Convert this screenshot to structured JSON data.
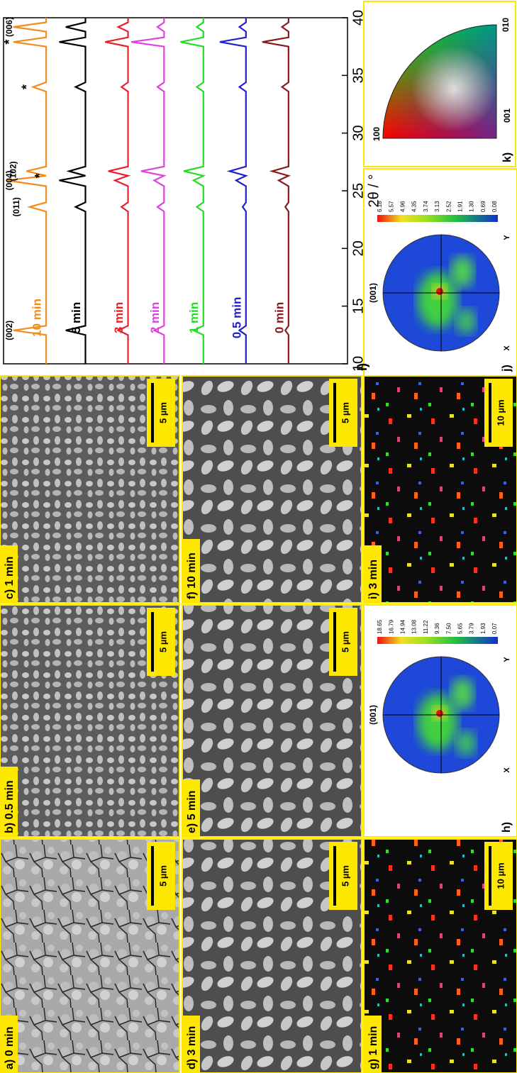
{
  "sem_panels": [
    {
      "label": "a) 0 min",
      "scale_bar": "5 µm"
    },
    {
      "label": "b) 0.5 min",
      "scale_bar": "5 µm"
    },
    {
      "label": "c) 1 min",
      "scale_bar": "5 µm"
    },
    {
      "label": "d) 3 min",
      "scale_bar": "5 µm"
    },
    {
      "label": "e) 5 min",
      "scale_bar": "5 µm"
    },
    {
      "label": "f) 10 min",
      "scale_bar": "5 µm"
    }
  ],
  "ebsd_maps": [
    {
      "label": "g) 1 min",
      "scale_bar": "10 µm"
    },
    {
      "label": "i) 3 min",
      "scale_bar": "10 µm"
    }
  ],
  "pole_figures": [
    {
      "label": "h)",
      "plane": "(001)",
      "axis_x": "X",
      "axis_y": "Y",
      "colorbar": [
        "18.65",
        "16.79",
        "14.94",
        "13.08",
        "11.22",
        "9.36",
        "7.50",
        "5.65",
        "3.79",
        "1.93",
        "0.07"
      ]
    },
    {
      "label": "j)",
      "plane": "(001)",
      "axis_x": "X",
      "axis_y": "Y",
      "colorbar": [
        "6.18",
        "5.57",
        "4.96",
        "4.35",
        "3.74",
        "3.13",
        "2.52",
        "1.91",
        "1.30",
        "0.69",
        "0.08"
      ]
    }
  ],
  "ipf_key": {
    "label": "k)",
    "corner_001": "001",
    "corner_010": "010",
    "corner_100": "100"
  },
  "chart_data": {
    "type": "line",
    "label": "l)",
    "xlabel": "2θ / °",
    "x": [
      10,
      12.5,
      12.9,
      13.3,
      23.2,
      23.6,
      24.0,
      25.4,
      25.9,
      26.3,
      26.7,
      27.1,
      33.6,
      34.0,
      34.4,
      37.5,
      37.9,
      38.3,
      38.8,
      39.2,
      39.6,
      40
    ],
    "xlim": [
      10,
      40
    ],
    "xticks": [
      10,
      15,
      20,
      25,
      30,
      35,
      40
    ],
    "ylim": [
      0,
      105
    ],
    "grid": false,
    "series": [
      {
        "name": "10 min",
        "color": "#f28c1e",
        "values": [
          92,
          92,
          102,
          92,
          92,
          97,
          92,
          92,
          104,
          92,
          98,
          92,
          92,
          96,
          92,
          92,
          102,
          92,
          92,
          102,
          92,
          92
        ]
      },
      {
        "name": "5 min",
        "color": "#000000",
        "values": [
          80,
          80,
          86,
          80,
          80,
          83,
          80,
          80,
          88,
          80,
          85,
          80,
          80,
          83,
          80,
          80,
          88,
          80,
          80,
          86,
          80,
          80
        ]
      },
      {
        "name": "3 min",
        "color": "#e8202a",
        "values": [
          67,
          67,
          70,
          67,
          67,
          69,
          67,
          67,
          71,
          67,
          73,
          67,
          67,
          69,
          67,
          67,
          74,
          67,
          67,
          70,
          67,
          67
        ]
      },
      {
        "name": "2 min",
        "color": "#e040e0",
        "values": [
          56,
          56,
          59,
          56,
          56,
          58,
          56,
          56,
          59,
          56,
          63,
          56,
          56,
          58,
          56,
          56,
          66,
          56,
          56,
          58,
          56,
          56
        ]
      },
      {
        "name": "1 min",
        "color": "#22dd22",
        "values": [
          44,
          44,
          47,
          44,
          44,
          46,
          44,
          44,
          47,
          44,
          50,
          44,
          44,
          46,
          44,
          44,
          51,
          44,
          44,
          46,
          44,
          44
        ]
      },
      {
        "name": "0.5 min",
        "color": "#2020d0",
        "values": [
          31,
          31,
          33,
          31,
          31,
          32,
          31,
          31,
          34,
          31,
          36,
          31,
          31,
          33,
          31,
          31,
          39,
          31,
          31,
          33,
          31,
          31
        ]
      },
      {
        "name": "0 min",
        "color": "#8b1a1a",
        "values": [
          18,
          18,
          19,
          18,
          18,
          19,
          18,
          18,
          21,
          18,
          23,
          18,
          18,
          20,
          18,
          18,
          26,
          18,
          18,
          20,
          18,
          18
        ]
      }
    ],
    "annotations": [
      {
        "text": "(002)",
        "x": 12.9
      },
      {
        "text": "(011)",
        "x": 23.6
      },
      {
        "text": "(004)",
        "x": 25.9
      },
      {
        "text": "(102)",
        "x": 26.7
      },
      {
        "text": "*",
        "x": 26.3
      },
      {
        "text": "*",
        "x": 34.0
      },
      {
        "text": "*",
        "x": 37.9
      },
      {
        "text": "(006)",
        "x": 39.2
      }
    ]
  }
}
